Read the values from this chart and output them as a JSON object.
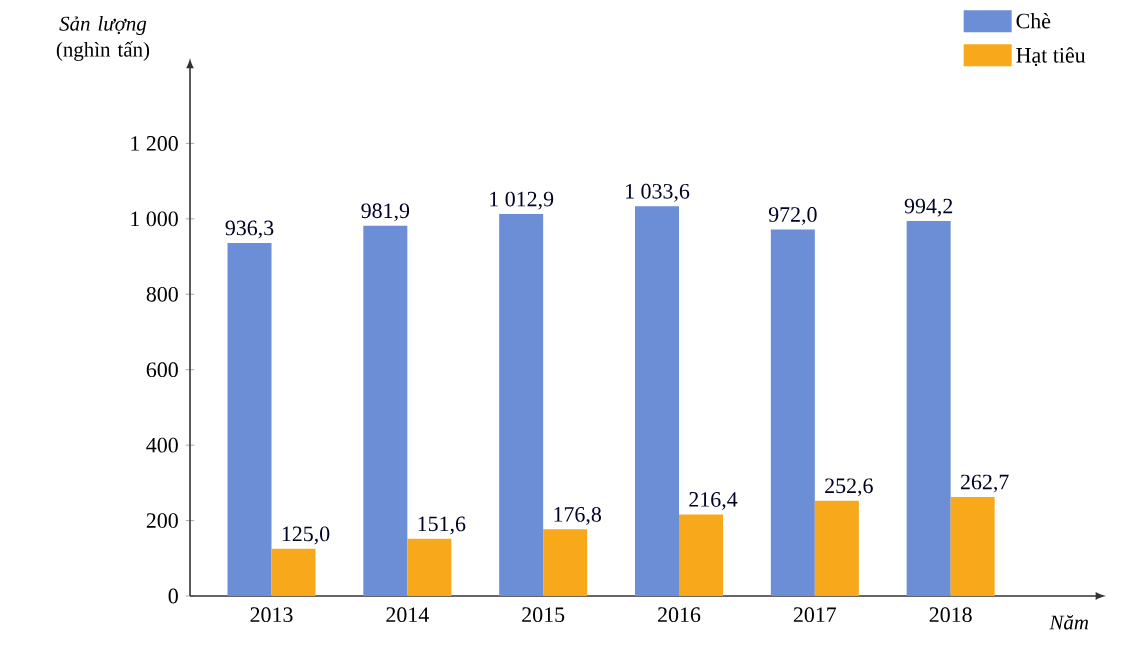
{
  "chart_data": {
    "type": "bar",
    "ylabel": "*Sản lượng* (nghìn tấn)",
    "xlabel": "Năm",
    "categories": [
      "2013",
      "2014",
      "2015",
      "2016",
      "2017",
      "2018"
    ],
    "series": [
      {
        "name": "Chè",
        "color": "#6b8ed6",
        "values": [
          936.3,
          981.9,
          1012.9,
          1033.6,
          972.0,
          994.2
        ],
        "value_labels": [
          "936,3",
          "981,9",
          "1 012,9",
          "1 033,6",
          "972,0",
          "994,2"
        ]
      },
      {
        "name": "Hạt tiêu",
        "color": "#f7a81b",
        "values": [
          125.0,
          151.6,
          176.8,
          216.4,
          252.6,
          262.7
        ],
        "value_labels": [
          "125,0",
          "151,6",
          "176,8",
          "216,4",
          "252,6",
          "262,7"
        ]
      }
    ],
    "ylim": [
      0,
      1400
    ],
    "yticks": [
      0,
      200,
      400,
      600,
      800,
      {
        "value": 1000,
        "label": "1 000"
      },
      {
        "value": 1200,
        "label": "1 200"
      }
    ],
    "legend": "top right",
    "grid": false
  }
}
